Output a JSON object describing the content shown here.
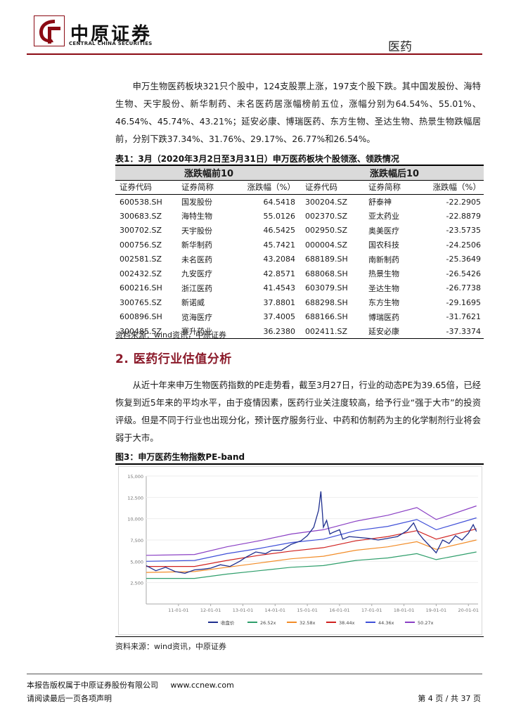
{
  "header": {
    "brand_cn": "中原证券",
    "brand_en": "CENTRAL CHINA SECURITIES",
    "section": "医药"
  },
  "para1": "申万生物医药板块321只个股中，124支股票上涨，197支个股下跌。其中国发股份、海特生物、天宇股份、新华制药、未名医药居涨幅榜前五位，涨幅分别为64.54%、55.01%、46.54%、45.74%、43.21%；延安必康、博瑞医药、东方生物、圣达生物、热景生物跌幅居前，分别下跌37.34%、31.76%、29.17%、26.77%和26.54%。",
  "table": {
    "caption": "表1：3月（2020年3月2日至3月31日）申万医药板块个股领涨、领跌情况",
    "group_left": "涨跌幅前10",
    "group_right": "涨跌幅后10",
    "columns": [
      "证券代码",
      "证券简称",
      "涨跌幅（%）",
      "证券代码",
      "证券简称",
      "涨跌幅（%）"
    ],
    "rows": [
      [
        "600538.SH",
        "国发股份",
        "64.5418",
        "300204.SZ",
        "舒泰神",
        "-22.2905"
      ],
      [
        "300683.SZ",
        "海特生物",
        "55.0126",
        "002370.SZ",
        "亚太药业",
        "-22.8879"
      ],
      [
        "300702.SZ",
        "天宇股份",
        "46.5425",
        "002950.SZ",
        "奥美医疗",
        "-23.5735"
      ],
      [
        "000756.SZ",
        "新华制药",
        "45.7421",
        "000004.SZ",
        "国农科技",
        "-24.2506"
      ],
      [
        "002581.SZ",
        "未名医药",
        "43.2084",
        "688189.SH",
        "南新制药",
        "-25.3649"
      ],
      [
        "002432.SZ",
        "九安医疗",
        "42.8571",
        "688068.SH",
        "热景生物",
        "-26.5426"
      ],
      [
        "600216.SH",
        "浙江医药",
        "41.4543",
        "603079.SH",
        "圣达生物",
        "-26.7738"
      ],
      [
        "300765.SZ",
        "新诺威",
        "37.8801",
        "688298.SH",
        "东方生物",
        "-29.1695"
      ],
      [
        "600896.SH",
        "览海医疗",
        "37.4005",
        "688166.SH",
        "博瑞医药",
        "-31.7621"
      ],
      [
        "300485.SZ",
        "赛升药业",
        "36.2380",
        "002411.SZ",
        "延安必康",
        "-37.3374"
      ]
    ],
    "source": "资料来源：wind资讯，中原证券"
  },
  "section2_title": "2. 医药行业估值分析",
  "para2": "从近十年来申万生物医药指数的PE走势看，截至3月27日，行业的动态PE为39.65倍，已经恢复到近5年来的平均水平，由于疫情因素，医药行业关注度较高，给予行业“强于大市”的投资评级。但是不同于行业也出现分化，预计医疗服务行业、中药和仿制药为主的化学制剂行业将会弱于大市。",
  "figure": {
    "caption": "图3：申万医药生物指数PE-band",
    "source": "资料来源：wind资讯，中原证券"
  },
  "chart_data": {
    "type": "line",
    "title": "",
    "xlabel": "",
    "ylabel": "",
    "x_tick_labels": [
      "11-01-01",
      "12-01-01",
      "13-01-01",
      "14-01-01",
      "15-01-01",
      "16-01-01",
      "17-01-01",
      "18-01-01",
      "19-01-01",
      "20-01-01"
    ],
    "y_tick_labels": [
      "2,500",
      "5,000",
      "7,500",
      "10,000",
      "12,500",
      "15,000"
    ],
    "ylim": [
      0,
      15000
    ],
    "xlim": [
      2010.0,
      2020.3
    ],
    "grid": true,
    "legend_position": "bottom",
    "series": [
      {
        "name": "收盘价",
        "color": "#1f2f8f",
        "x": [
          2010.0,
          2010.3,
          2010.6,
          2010.9,
          2011.2,
          2011.5,
          2011.8,
          2012.0,
          2012.3,
          2012.6,
          2012.9,
          2013.1,
          2013.4,
          2013.7,
          2013.9,
          2014.2,
          2014.5,
          2014.8,
          2015.0,
          2015.2,
          2015.35,
          2015.42,
          2015.5,
          2015.6,
          2015.7,
          2015.8,
          2016.0,
          2016.1,
          2016.3,
          2016.6,
          2016.9,
          2017.2,
          2017.5,
          2017.8,
          2018.1,
          2018.3,
          2018.45,
          2018.6,
          2018.8,
          2019.0,
          2019.2,
          2019.4,
          2019.6,
          2019.8,
          2020.0,
          2020.15,
          2020.25
        ],
        "values": [
          4500,
          3900,
          4300,
          3800,
          3600,
          4000,
          4100,
          4200,
          4600,
          4400,
          5000,
          5500,
          6100,
          5900,
          6300,
          6300,
          7000,
          7400,
          8000,
          9000,
          11000,
          13200,
          9000,
          9800,
          8200,
          8400,
          8700,
          7600,
          7900,
          7800,
          7700,
          7500,
          7700,
          7900,
          8600,
          9500,
          8300,
          7600,
          6800,
          6000,
          7500,
          7100,
          8000,
          7500,
          8300,
          9300,
          8500
        ]
      },
      {
        "name": "26.52x",
        "color": "#2e9e6b",
        "x": [
          2010.0,
          2011.5,
          2012.5,
          2013.5,
          2014.5,
          2015.5,
          2016.5,
          2017.5,
          2018.4,
          2019.0,
          2020.25
        ],
        "values": [
          3000,
          3000,
          3500,
          3900,
          4300,
          4500,
          5100,
          5400,
          5900,
          5200,
          6100
        ]
      },
      {
        "name": "32.58x",
        "color": "#f28c28",
        "x": [
          2010.0,
          2011.5,
          2012.5,
          2013.5,
          2014.5,
          2015.5,
          2016.5,
          2017.5,
          2018.4,
          2019.0,
          2020.25
        ],
        "values": [
          3700,
          3800,
          4300,
          4800,
          5300,
          5600,
          6300,
          6700,
          7300,
          6400,
          7500
        ]
      },
      {
        "name": "38.44x",
        "color": "#d0211f",
        "x": [
          2010.0,
          2011.5,
          2012.5,
          2013.5,
          2014.5,
          2015.5,
          2016.5,
          2017.5,
          2018.4,
          2019.0,
          2020.25
        ],
        "values": [
          4400,
          4400,
          5100,
          5700,
          6200,
          6600,
          7400,
          7900,
          8600,
          7600,
          8800
        ]
      },
      {
        "name": "44.36x",
        "color": "#3f4fd8",
        "x": [
          2010.0,
          2011.5,
          2012.5,
          2013.5,
          2014.5,
          2015.5,
          2016.5,
          2017.5,
          2018.4,
          2019.0,
          2020.25
        ],
        "values": [
          5000,
          5100,
          5900,
          6500,
          7200,
          7600,
          8600,
          9100,
          9900,
          8700,
          10100
        ]
      },
      {
        "name": "50.27x",
        "color": "#8a3fc4",
        "x": [
          2010.0,
          2011.5,
          2012.5,
          2013.5,
          2014.5,
          2015.5,
          2016.5,
          2017.5,
          2018.4,
          2019.0,
          2020.25
        ],
        "values": [
          5700,
          5800,
          6700,
          7400,
          8200,
          8700,
          9700,
          10400,
          11300,
          9900,
          11500
        ]
      }
    ]
  },
  "footer": {
    "copyright": "本报告版权属于中原证券股份有限公司",
    "url": "www.ccnew.com",
    "note": "请阅读最后一页各项声明",
    "page": "第 4 页 / 共 37 页"
  }
}
